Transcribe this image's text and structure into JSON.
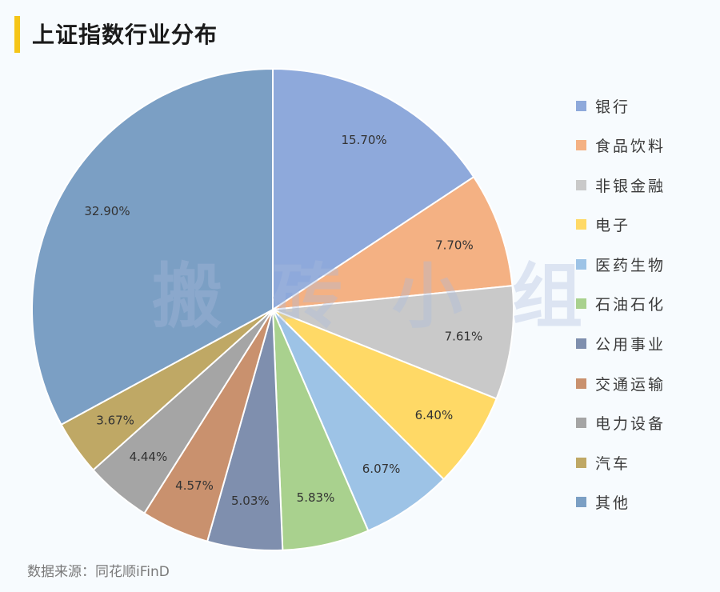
{
  "title": "上证指数行业分布",
  "watermark": "搬砖小组",
  "source": "数据来源：同花顺iFinD",
  "chart_data": {
    "type": "pie",
    "categories": [
      "银行",
      "食品饮料",
      "非银金融",
      "电子",
      "医药生物",
      "石油石化",
      "公用事业",
      "交通运输",
      "电力设备",
      "汽车",
      "其他"
    ],
    "values": [
      15.7,
      7.7,
      7.61,
      6.4,
      6.07,
      5.83,
      5.03,
      4.57,
      4.44,
      3.67,
      32.9
    ],
    "labels": [
      "15.70%",
      "7.70%",
      "7.61%",
      "6.40%",
      "6.07%",
      "5.83%",
      "5.03%",
      "4.57%",
      "4.44%",
      "3.67%",
      "32.90%"
    ],
    "colors": [
      "#8ea9db",
      "#f4b183",
      "#c9c9c9",
      "#ffd966",
      "#9dc3e6",
      "#a9d18e",
      "#7f8fae",
      "#c9916e",
      "#a5a5a5",
      "#bfa865",
      "#7b9fc4"
    ],
    "start_angle": "12 o'clock",
    "direction": "clockwise",
    "legend_position": "right"
  }
}
